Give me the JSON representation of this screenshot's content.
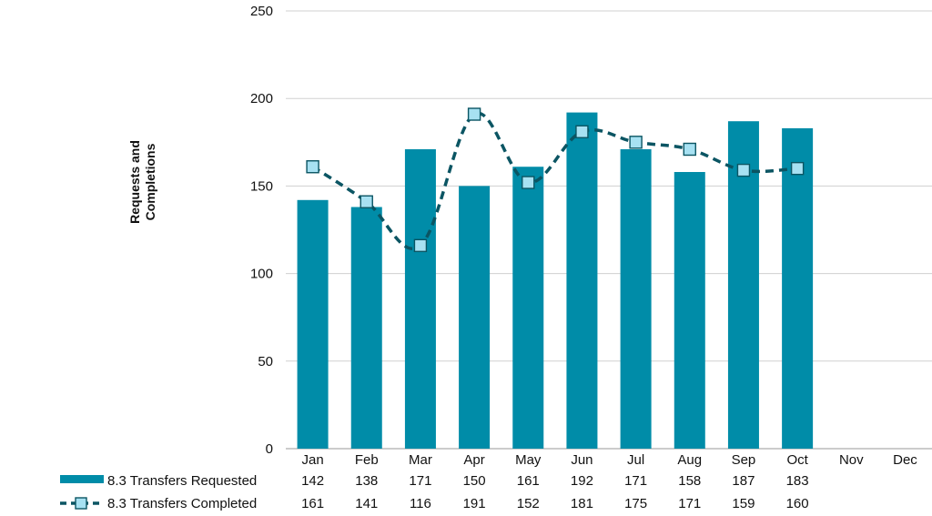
{
  "chart_data": {
    "type": "bar",
    "title": "",
    "xlabel": "",
    "ylabel": "Requests and Completions",
    "ylim": [
      0,
      250
    ],
    "yticks": [
      0,
      50,
      100,
      150,
      200,
      250
    ],
    "grid": true,
    "legend": "bottom-left",
    "categories": [
      "Jan",
      "Feb",
      "Mar",
      "Apr",
      "May",
      "Jun",
      "Jul",
      "Aug",
      "Sep",
      "Oct",
      "Nov",
      "Dec"
    ],
    "series": [
      {
        "name": "8.3 Transfers Requested",
        "kind": "bar",
        "color": "#008ca8",
        "values": [
          142,
          138,
          171,
          150,
          161,
          192,
          171,
          158,
          187,
          183,
          null,
          null
        ]
      },
      {
        "name": "8.3 Transfers Completed",
        "kind": "line",
        "style": "dashed-smooth",
        "color": "#0b5563",
        "marker": "square",
        "marker_color": "#a7e1f2",
        "values": [
          161,
          141,
          116,
          191,
          152,
          181,
          175,
          171,
          159,
          160,
          null,
          null
        ]
      }
    ]
  }
}
